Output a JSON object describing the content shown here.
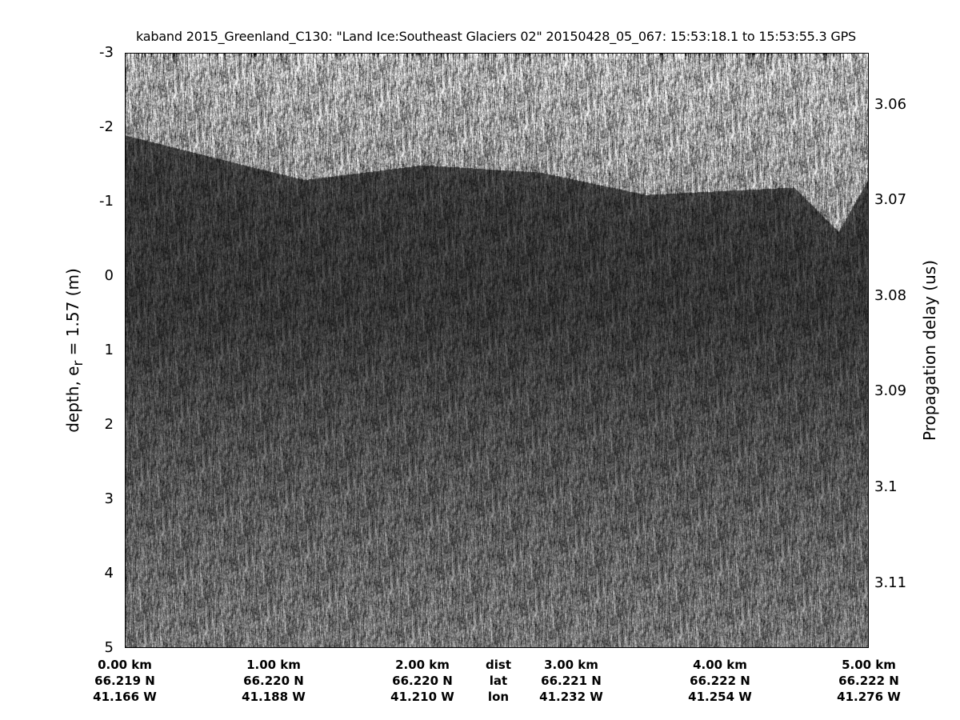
{
  "chart_data": {
    "type": "heatmap",
    "title": "kaband 2015_Greenland_C130: \"Land Ice:Southeast  Glaciers 02\"  20150428_05_067: 15:53:18.1 to 15:53:55.3 GPS",
    "ylabel_pre": "depth, e",
    "ylabel_sub": "r",
    "ylabel_post": " = 1.57 (m)",
    "y2label": "Propagation delay (us)",
    "ylim": [
      -3,
      5
    ],
    "yticks": [
      "-3",
      "-2",
      "-1",
      "0",
      "1",
      "2",
      "3",
      "4",
      "5"
    ],
    "y2ticks": [
      "3.06",
      "3.07",
      "3.08",
      "3.09",
      "3.1",
      "3.11"
    ],
    "y2tick_values": [
      3.06,
      3.07,
      3.08,
      3.09,
      3.1,
      3.11
    ],
    "y2lim": [
      3.0546,
      3.1168
    ],
    "xlim_km": [
      0,
      5
    ],
    "colormap": "gray",
    "x_rows": [
      {
        "dist": "0.00 km",
        "lat": "66.219 N",
        "lon": "41.166 W",
        "km": 0
      },
      {
        "dist": "1.00 km",
        "lat": "66.220 N",
        "lon": "41.188 W",
        "km": 1
      },
      {
        "dist": "2.00 km",
        "lat": "66.220 N",
        "lon": "41.210 W",
        "km": 2
      },
      {
        "dist": "3.00 km",
        "lat": "66.221 N",
        "lon": "41.232 W",
        "km": 3
      },
      {
        "dist": "4.00 km",
        "lat": "66.222 N",
        "lon": "41.254 W",
        "km": 4
      },
      {
        "dist": "5.00 km",
        "lat": "66.222 N",
        "lon": "41.276 W",
        "km": 5
      }
    ],
    "row_labels": {
      "dist": "dist",
      "lat": "lat",
      "lon": "lon",
      "km": 2.5
    },
    "surface_depth_m": [
      {
        "km": 0,
        "depth": -1.9
      },
      {
        "km": 1,
        "depth": -1.4
      },
      {
        "km": 1.2,
        "depth": -1.3
      },
      {
        "km": 2,
        "depth": -1.5
      },
      {
        "km": 2.8,
        "depth": -1.4
      },
      {
        "km": 3.5,
        "depth": -1.1
      },
      {
        "km": 4.5,
        "depth": -1.2
      },
      {
        "km": 4.8,
        "depth": -0.6
      },
      {
        "km": 5,
        "depth": -1.3
      }
    ]
  }
}
